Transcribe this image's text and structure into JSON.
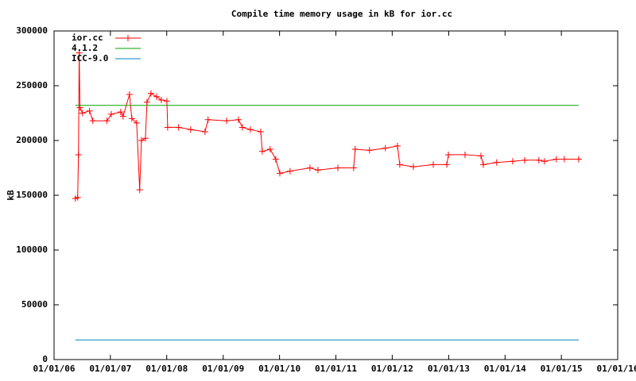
{
  "chart_data": {
    "type": "line",
    "title": "Compile time memory usage in kB for ior.cc",
    "ylabel": "kB",
    "xlim": [
      "2006-01-01",
      "2016-01-01"
    ],
    "xticks": [
      {
        "value": "2006-01-01",
        "label": "01/01/06"
      },
      {
        "value": "2007-01-01",
        "label": "01/01/07"
      },
      {
        "value": "2008-01-01",
        "label": "01/01/08"
      },
      {
        "value": "2009-01-01",
        "label": "01/01/09"
      },
      {
        "value": "2010-01-01",
        "label": "01/01/10"
      },
      {
        "value": "2011-01-01",
        "label": "01/01/11"
      },
      {
        "value": "2012-01-01",
        "label": "01/01/12"
      },
      {
        "value": "2013-01-01",
        "label": "01/01/13"
      },
      {
        "value": "2014-01-01",
        "label": "01/01/14"
      },
      {
        "value": "2015-01-01",
        "label": "01/01/15"
      },
      {
        "value": "2016-01-01",
        "label": "01/01/16"
      }
    ],
    "ylim": [
      0,
      300000
    ],
    "yticks": [
      0,
      50000,
      100000,
      150000,
      200000,
      250000,
      300000
    ],
    "legend": "top-left",
    "series": [
      {
        "name": "ior.cc",
        "color": "#ff0000",
        "markers": true,
        "x": [
          "2006-05-19",
          "2006-06-03",
          "2006-06-08",
          "2006-06-13",
          "2006-06-18",
          "2006-07-04",
          "2006-08-19",
          "2006-09-09",
          "2006-12-10",
          "2007-01-07",
          "2007-03-09",
          "2007-03-24",
          "2007-05-05",
          "2007-05-20",
          "2007-06-20",
          "2007-07-10",
          "2007-07-21",
          "2007-08-16",
          "2007-08-26",
          "2007-09-21",
          "2007-10-27",
          "2007-11-27",
          "2008-01-02",
          "2008-01-07",
          "2008-03-18",
          "2008-06-04",
          "2008-09-05",
          "2008-09-25",
          "2009-01-23",
          "2009-04-10",
          "2009-05-05",
          "2009-06-26",
          "2009-09-01",
          "2009-09-11",
          "2009-11-01",
          "2009-12-07",
          "2010-01-03",
          "2010-03-10",
          "2010-07-17",
          "2010-09-07",
          "2011-01-14",
          "2011-04-26",
          "2011-05-06",
          "2011-08-07",
          "2011-11-18",
          "2012-02-04",
          "2012-02-19",
          "2012-05-17",
          "2012-09-23",
          "2012-12-20",
          "2012-12-30",
          "2013-04-17",
          "2013-07-29",
          "2013-08-13",
          "2013-11-08",
          "2014-02-20",
          "2014-05-08",
          "2014-08-08",
          "2014-09-13",
          "2014-11-29",
          "2015-01-20",
          "2015-04-23"
        ],
        "values": [
          147000,
          148000,
          187000,
          280000,
          230000,
          225000,
          227000,
          218000,
          218000,
          224000,
          226000,
          222000,
          242000,
          220000,
          216000,
          155000,
          200000,
          202000,
          235000,
          243000,
          240000,
          237000,
          236000,
          212000,
          212000,
          210000,
          208000,
          219000,
          218000,
          219000,
          212000,
          210000,
          208000,
          190000,
          192000,
          183000,
          170000,
          172000,
          175000,
          173000,
          175000,
          175000,
          192000,
          191000,
          193000,
          195000,
          178000,
          176000,
          178000,
          178000,
          187000,
          187000,
          186000,
          178000,
          180000,
          181000,
          182000,
          182000,
          181000,
          183000,
          183000,
          183000
        ]
      },
      {
        "name": "4.1.2",
        "color": "#00a000",
        "x": [
          "2006-05-19",
          "2015-04-23"
        ],
        "values": [
          232000,
          232000
        ]
      },
      {
        "name": "ICC-9.0",
        "color": "#0080c0",
        "x": [
          "2006-05-19",
          "2015-04-23"
        ],
        "values": [
          18000,
          18000
        ]
      }
    ]
  }
}
